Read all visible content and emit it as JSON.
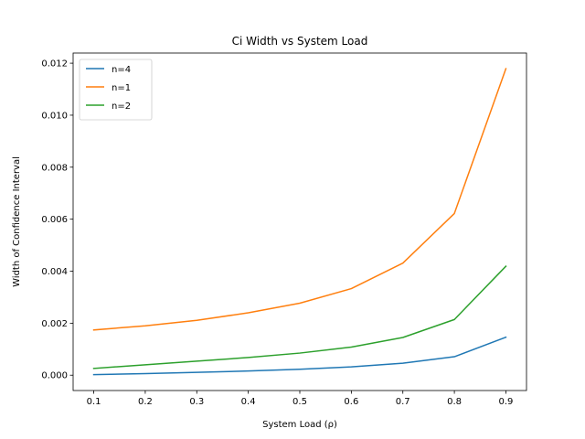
{
  "chart_data": {
    "type": "line",
    "title": "Ci Width vs System Load",
    "xlabel": "System Load (ρ)",
    "ylabel": "Width of Confidence Interval",
    "x": [
      0.1,
      0.2,
      0.3,
      0.4,
      0.5,
      0.6,
      0.7,
      0.8,
      0.9
    ],
    "xlim": [
      0.06,
      0.94
    ],
    "ylim": [
      -0.00059,
      0.01239
    ],
    "xticks": [
      "0.1",
      "0.2",
      "0.3",
      "0.4",
      "0.5",
      "0.6",
      "0.7",
      "0.8",
      "0.9"
    ],
    "yticks": [
      {
        "value": 0.0,
        "label": "0.000"
      },
      {
        "value": 0.002,
        "label": "0.002"
      },
      {
        "value": 0.004,
        "label": "0.004"
      },
      {
        "value": 0.006,
        "label": "0.006"
      },
      {
        "value": 0.008,
        "label": "0.008"
      },
      {
        "value": 0.01,
        "label": "0.010"
      },
      {
        "value": 0.012,
        "label": "0.012"
      }
    ],
    "grid": false,
    "legend_position": "top-left",
    "series": [
      {
        "name": "n=4",
        "color": "#1f77b4",
        "values": [
          2e-05,
          6e-05,
          0.00011,
          0.00016,
          0.00023,
          0.00032,
          0.00046,
          0.00071,
          0.00146
        ]
      },
      {
        "name": "n=1",
        "color": "#ff7f0e",
        "values": [
          0.00174,
          0.0019,
          0.00211,
          0.0024,
          0.00277,
          0.00333,
          0.00431,
          0.00622,
          0.01179
        ]
      },
      {
        "name": "n=2",
        "color": "#2ca02c",
        "values": [
          0.00026,
          0.0004,
          0.00054,
          0.00068,
          0.00085,
          0.00108,
          0.00145,
          0.00214,
          0.00419
        ]
      }
    ]
  }
}
